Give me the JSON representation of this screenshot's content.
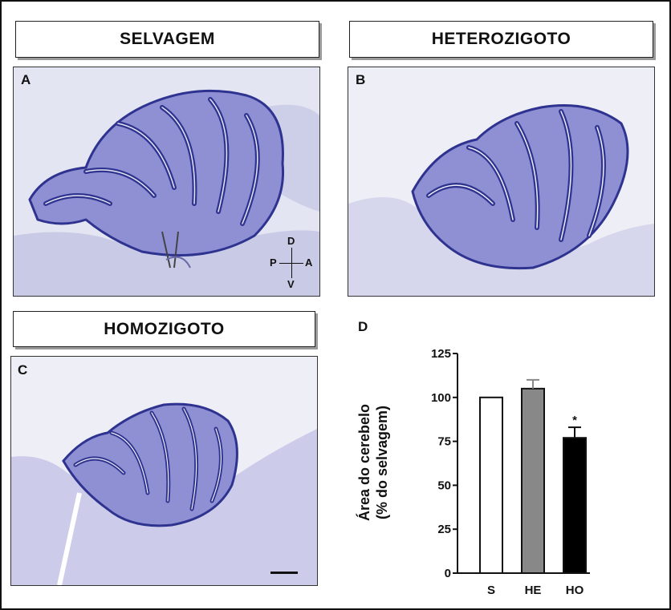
{
  "figure": {
    "panel_titles": {
      "a": "SELVAGEM",
      "b": "HETEROZIGOTO",
      "c": "HOMOZIGOTO"
    },
    "panel_letters": {
      "a": "A",
      "b": "B",
      "c": "C",
      "d": "D"
    },
    "orientation": {
      "dorsal": "D",
      "ventral": "V",
      "posterior": "P",
      "anterior": "A"
    }
  },
  "colors": {
    "tissue_background": "#c7c9e8",
    "granular_layer": "#3a3f9e",
    "molecular_layer": "#8f90d4",
    "bar_s": "#ffffff",
    "bar_he": "#888888",
    "bar_ho": "#000000"
  },
  "chart_data": {
    "type": "bar",
    "categories": [
      "S",
      "HE",
      "HO"
    ],
    "values": [
      100,
      105,
      77
    ],
    "errors": [
      0,
      5,
      6
    ],
    "ylabel_line1": "Área do cerebelo",
    "ylabel_line2": "(% do selvagem)",
    "ylim": [
      0,
      125
    ],
    "yticks": [
      0,
      25,
      50,
      75,
      100,
      125
    ],
    "significance": [
      "",
      "",
      "*"
    ],
    "grid": false
  }
}
